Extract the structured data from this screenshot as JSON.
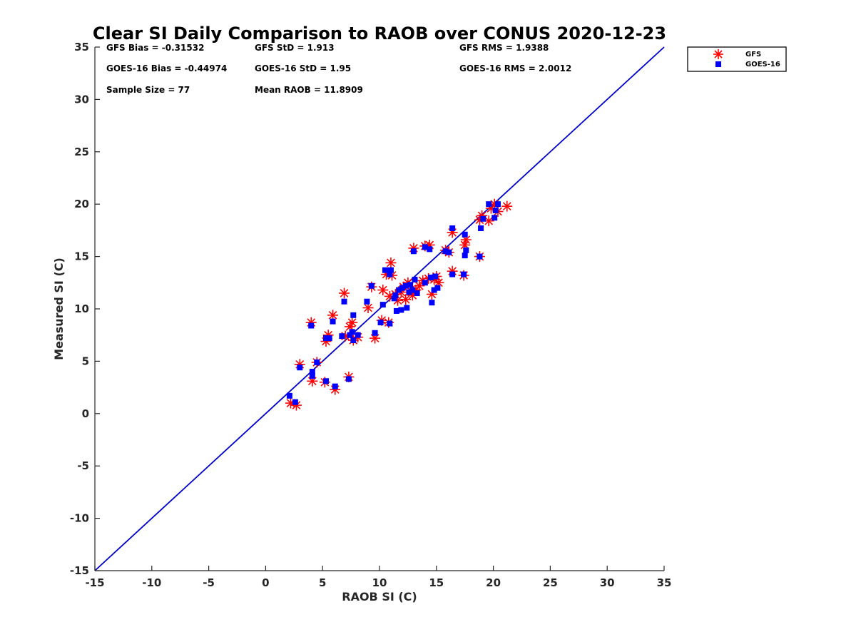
{
  "chart_data": {
    "type": "scatter",
    "title": "Clear SI Daily Comparison to RAOB over CONUS 2020-12-23",
    "xlabel": "RAOB SI (C)",
    "ylabel": "Measured SI (C)",
    "xlim": [
      -15,
      35
    ],
    "ylim": [
      -15,
      35
    ],
    "xticks": [
      -15,
      -10,
      -5,
      0,
      5,
      10,
      15,
      20,
      25,
      30,
      35
    ],
    "yticks": [
      -15,
      -10,
      -5,
      0,
      5,
      10,
      15,
      20,
      25,
      30,
      35
    ],
    "grid": false,
    "legend_position": "outside-top-right",
    "reference_line": {
      "from": [
        -15,
        -15
      ],
      "to": [
        35,
        35
      ],
      "color": "#0000cc"
    },
    "stats": [
      {
        "key": "gfs_bias",
        "text": "GFS Bias = -0.31532"
      },
      {
        "key": "gfs_std",
        "text": "GFS StD = 1.913"
      },
      {
        "key": "gfs_rms",
        "text": "GFS RMS = 1.9388"
      },
      {
        "key": "goes_bias",
        "text": "GOES-16 Bias = -0.44974"
      },
      {
        "key": "goes_std",
        "text": "GOES-16 StD = 1.95"
      },
      {
        "key": "goes_rms",
        "text": "GOES-16 RMS = 2.0012"
      },
      {
        "key": "sample_size",
        "text": "Sample Size = 77"
      },
      {
        "key": "mean_raob",
        "text": "Mean RAOB = 11.8909"
      }
    ],
    "series": [
      {
        "name": "GFS",
        "marker": "asterisk",
        "color": "#ff0000",
        "points": [
          [
            2.2,
            1.0
          ],
          [
            2.7,
            0.8
          ],
          [
            3.0,
            4.7
          ],
          [
            4.0,
            8.7
          ],
          [
            4.1,
            3.1
          ],
          [
            4.5,
            4.9
          ],
          [
            5.3,
            6.9
          ],
          [
            5.5,
            7.5
          ],
          [
            5.9,
            9.4
          ],
          [
            6.1,
            2.3
          ],
          [
            5.2,
            3.0
          ],
          [
            6.9,
            11.5
          ],
          [
            7.0,
            7.4
          ],
          [
            7.3,
            3.5
          ],
          [
            7.4,
            8.3
          ],
          [
            7.6,
            8.7
          ],
          [
            7.7,
            7.0
          ],
          [
            8.1,
            7.3
          ],
          [
            9.0,
            10.1
          ],
          [
            9.3,
            12.1
          ],
          [
            9.6,
            7.2
          ],
          [
            10.2,
            8.9
          ],
          [
            10.3,
            11.8
          ],
          [
            10.6,
            13.3
          ],
          [
            10.8,
            8.7
          ],
          [
            10.9,
            11.2
          ],
          [
            11.0,
            14.4
          ],
          [
            11.1,
            13.2
          ],
          [
            11.4,
            11.4
          ],
          [
            11.6,
            10.8
          ],
          [
            11.9,
            11.6
          ],
          [
            12.1,
            12.1
          ],
          [
            12.3,
            10.9
          ],
          [
            12.5,
            12.5
          ],
          [
            12.7,
            11.8
          ],
          [
            12.9,
            11.3
          ],
          [
            13.0,
            15.8
          ],
          [
            13.2,
            11.8
          ],
          [
            13.5,
            12.2
          ],
          [
            13.8,
            12.7
          ],
          [
            14.0,
            16.0
          ],
          [
            14.3,
            12.9
          ],
          [
            14.4,
            16.1
          ],
          [
            14.6,
            11.4
          ],
          [
            14.8,
            12.8
          ],
          [
            15.0,
            13.1
          ],
          [
            15.2,
            12.5
          ],
          [
            15.8,
            15.6
          ],
          [
            16.1,
            15.4
          ],
          [
            16.4,
            17.3
          ],
          [
            16.4,
            13.6
          ],
          [
            17.4,
            13.2
          ],
          [
            17.5,
            16.1
          ],
          [
            17.6,
            16.6
          ],
          [
            18.8,
            15.0
          ],
          [
            18.8,
            18.5
          ],
          [
            19.0,
            18.9
          ],
          [
            19.6,
            18.4
          ],
          [
            19.8,
            19.6
          ],
          [
            20.1,
            20.0
          ],
          [
            20.4,
            19.3
          ],
          [
            21.2,
            19.8
          ]
        ]
      },
      {
        "name": "GOES-16",
        "marker": "square",
        "color": "#0000ff",
        "points": [
          [
            2.1,
            1.7
          ],
          [
            2.6,
            1.1
          ],
          [
            3.0,
            4.4
          ],
          [
            4.0,
            8.4
          ],
          [
            4.1,
            3.6
          ],
          [
            4.1,
            4.0
          ],
          [
            4.5,
            4.9
          ],
          [
            5.3,
            3.1
          ],
          [
            5.3,
            7.2
          ],
          [
            5.6,
            7.2
          ],
          [
            5.9,
            8.8
          ],
          [
            6.1,
            2.6
          ],
          [
            6.7,
            7.4
          ],
          [
            6.9,
            10.7
          ],
          [
            7.3,
            3.3
          ],
          [
            7.4,
            7.5
          ],
          [
            7.6,
            7.8
          ],
          [
            7.7,
            7.0
          ],
          [
            7.7,
            9.4
          ],
          [
            8.1,
            7.5
          ],
          [
            8.9,
            10.7
          ],
          [
            9.3,
            12.2
          ],
          [
            9.6,
            7.7
          ],
          [
            10.1,
            8.7
          ],
          [
            10.3,
            10.4
          ],
          [
            10.5,
            13.7
          ],
          [
            10.9,
            8.6
          ],
          [
            10.9,
            13.3
          ],
          [
            11.0,
            13.7
          ],
          [
            11.3,
            11.0
          ],
          [
            11.4,
            11.3
          ],
          [
            11.5,
            9.8
          ],
          [
            11.7,
            11.8
          ],
          [
            11.9,
            9.9
          ],
          [
            12.0,
            12.0
          ],
          [
            12.3,
            12.2
          ],
          [
            12.4,
            10.1
          ],
          [
            12.6,
            11.6
          ],
          [
            12.7,
            12.3
          ],
          [
            12.9,
            11.8
          ],
          [
            13.0,
            15.5
          ],
          [
            13.1,
            12.8
          ],
          [
            13.3,
            11.5
          ],
          [
            14.0,
            12.5
          ],
          [
            14.0,
            15.9
          ],
          [
            14.4,
            15.7
          ],
          [
            14.5,
            13.0
          ],
          [
            14.6,
            10.6
          ],
          [
            14.8,
            11.8
          ],
          [
            14.9,
            13.1
          ],
          [
            15.1,
            12.0
          ],
          [
            15.8,
            15.5
          ],
          [
            16.1,
            15.4
          ],
          [
            16.4,
            13.3
          ],
          [
            16.4,
            17.7
          ],
          [
            17.4,
            13.3
          ],
          [
            17.5,
            15.1
          ],
          [
            17.5,
            17.1
          ],
          [
            17.6,
            15.6
          ],
          [
            18.8,
            15.0
          ],
          [
            18.9,
            17.7
          ],
          [
            19.1,
            18.6
          ],
          [
            19.6,
            20.0
          ],
          [
            20.1,
            18.7
          ],
          [
            20.2,
            19.4
          ],
          [
            20.4,
            20.0
          ]
        ]
      }
    ]
  }
}
